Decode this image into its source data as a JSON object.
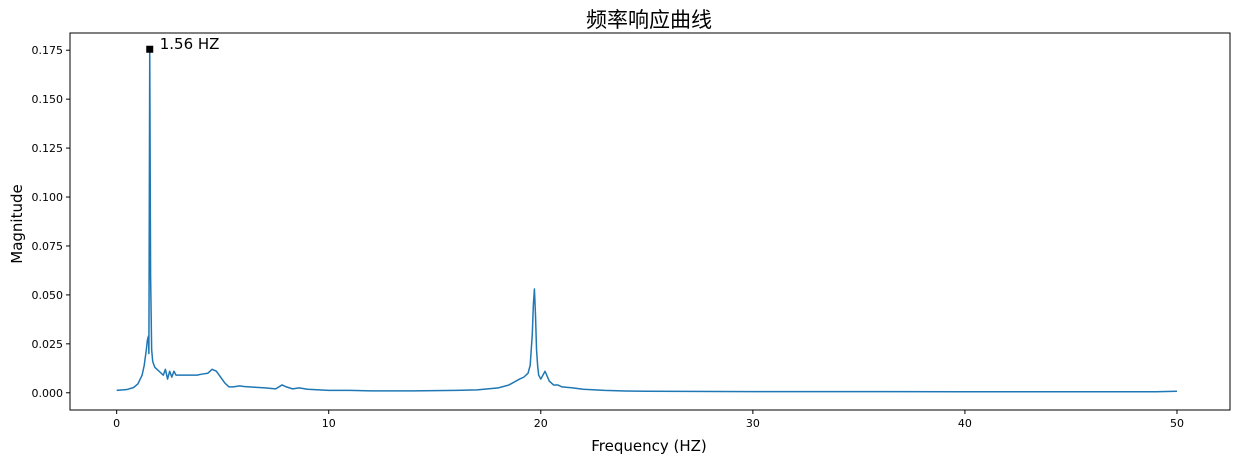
{
  "chart_data": {
    "type": "line",
    "title": "频率响应曲线",
    "xlabel": "Frequency (HZ)",
    "ylabel": "Magnitude",
    "xlim": [
      -2.2,
      52.5
    ],
    "ylim": [
      -0.0088,
      0.1838
    ],
    "xticks": [
      0,
      10,
      20,
      30,
      40,
      50
    ],
    "xtick_labels": [
      "0",
      "10",
      "20",
      "30",
      "40",
      "50"
    ],
    "yticks": [
      0.0,
      0.025,
      0.05,
      0.075,
      0.1,
      0.125,
      0.15,
      0.175
    ],
    "ytick_labels": [
      "0.000",
      "0.025",
      "0.050",
      "0.075",
      "0.100",
      "0.125",
      "0.150",
      "0.175"
    ],
    "grid": false,
    "legend": "none",
    "series": [
      {
        "color": "#1f77b4",
        "x": [
          0,
          0.5,
          0.8,
          1.0,
          1.2,
          1.3,
          1.4,
          1.45,
          1.5,
          1.52,
          1.56,
          1.6,
          1.65,
          1.7,
          1.8,
          1.9,
          2.0,
          2.2,
          2.3,
          2.4,
          2.5,
          2.6,
          2.7,
          2.8,
          3.0,
          3.2,
          3.5,
          3.8,
          4.0,
          4.3,
          4.5,
          4.7,
          4.9,
          5.1,
          5.3,
          5.5,
          5.8,
          6.0,
          6.5,
          7.0,
          7.5,
          7.8,
          8.0,
          8.3,
          8.6,
          9.0,
          10.0,
          11.0,
          12.0,
          13.0,
          14.0,
          15.0,
          16.0,
          17.0,
          18.0,
          18.5,
          19.0,
          19.2,
          19.4,
          19.5,
          19.6,
          19.65,
          19.7,
          19.75,
          19.8,
          19.85,
          19.9,
          20.0,
          20.2,
          20.4,
          20.6,
          20.8,
          21.0,
          21.5,
          22.0,
          23.0,
          24.0,
          25.0,
          30.0,
          35.0,
          40.0,
          45.0,
          49.0,
          50.0
        ],
        "y": [
          0.0012,
          0.0017,
          0.0027,
          0.0045,
          0.009,
          0.014,
          0.022,
          0.027,
          0.029,
          0.02,
          0.1755,
          0.06,
          0.022,
          0.016,
          0.013,
          0.012,
          0.011,
          0.009,
          0.012,
          0.007,
          0.011,
          0.008,
          0.011,
          0.009,
          0.009,
          0.009,
          0.009,
          0.009,
          0.0095,
          0.01,
          0.012,
          0.011,
          0.008,
          0.005,
          0.003,
          0.003,
          0.0035,
          0.0032,
          0.0028,
          0.0025,
          0.002,
          0.004,
          0.003,
          0.002,
          0.0025,
          0.0018,
          0.0012,
          0.0012,
          0.001,
          0.001,
          0.001,
          0.0011,
          0.0012,
          0.0015,
          0.0025,
          0.004,
          0.007,
          0.008,
          0.01,
          0.014,
          0.03,
          0.045,
          0.053,
          0.04,
          0.022,
          0.014,
          0.009,
          0.007,
          0.011,
          0.006,
          0.004,
          0.004,
          0.003,
          0.0025,
          0.0018,
          0.0012,
          0.0009,
          0.0008,
          0.0006,
          0.0006,
          0.0005,
          0.0005,
          0.0005,
          0.0008
        ]
      }
    ],
    "annotations": [
      {
        "text": "1.56 HZ",
        "x": 1.56,
        "y": 0.1755,
        "marker": "square",
        "marker_color": "#000000"
      }
    ]
  }
}
